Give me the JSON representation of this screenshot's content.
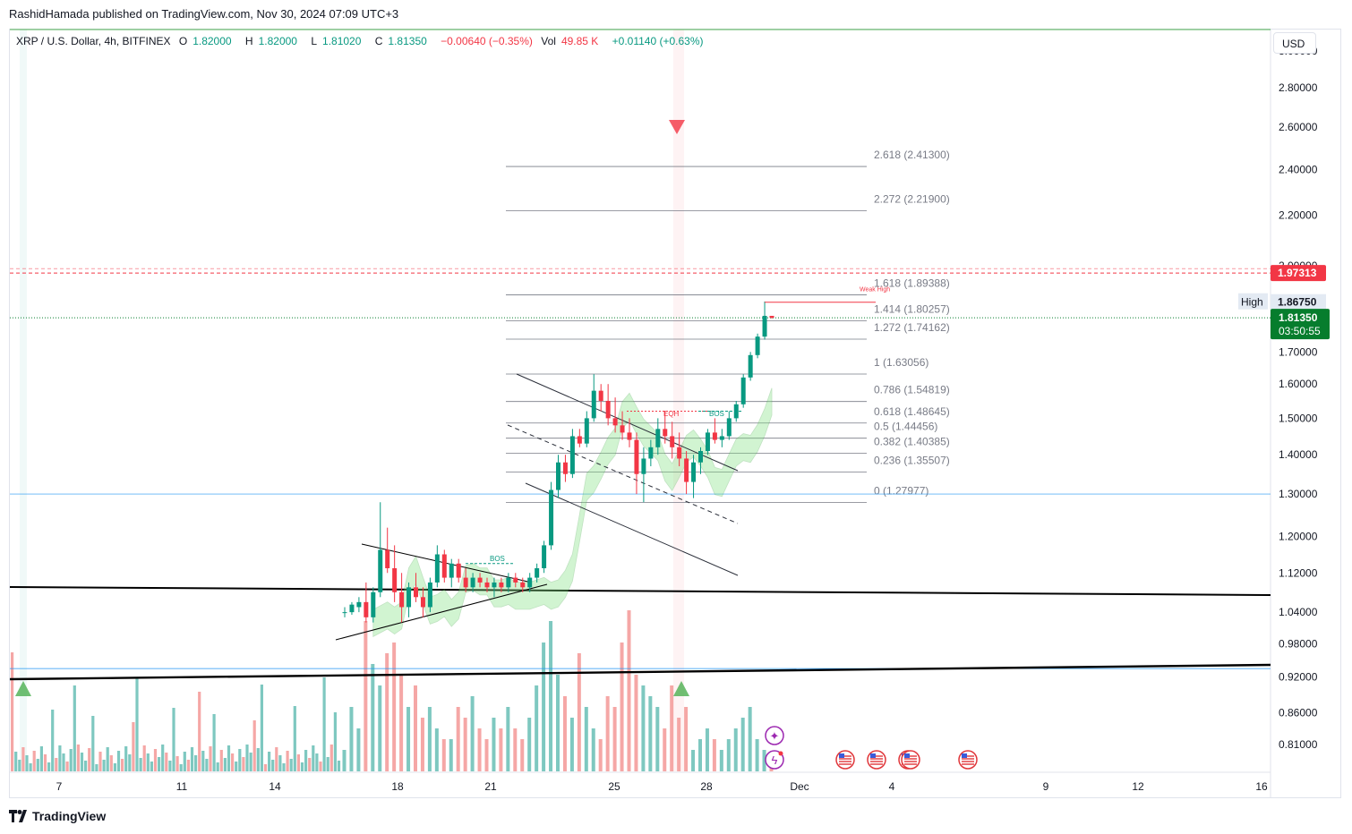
{
  "header": {
    "text": "RashidHamada published on TradingView.com, Nov 30, 2024 07:09 UTC+3"
  },
  "legend": {
    "symbol": "XRP / U.S. Dollar, 4h, BITFINEX",
    "open_label": "O",
    "open": "1.82000",
    "high_label": "H",
    "high": "1.82000",
    "low_label": "L",
    "low": "1.81020",
    "close_label": "C",
    "close": "1.81350",
    "change": "−0.00640 (−0.35%)",
    "vol_label": "Vol",
    "vol": "49.85 K",
    "vol_change": "+0.01140 (+0.63%)"
  },
  "currency_button": "USD",
  "footer": {
    "brand": "TradingView"
  },
  "colors": {
    "up": "#089981",
    "down": "#f23645",
    "vol_up": "#7ec8c0",
    "vol_down": "#f5a7a6",
    "fib": "#787b86",
    "trend": "#000000",
    "channel": "#2a2e39",
    "ribbon": "#7ee07e",
    "price_label": "#067d2d",
    "red_label": "#f23645"
  },
  "chart_data": {
    "type": "candlestick",
    "symbol": "XRP / U.S. Dollar",
    "interval": "4h",
    "y_range": [
      0.77,
      3.12
    ],
    "y_scale": "log",
    "y_ticks": [
      "3.00000",
      "2.80000",
      "2.60000",
      "2.40000",
      "2.20000",
      "2.00000",
      "1.70000",
      "1.60000",
      "1.50000",
      "1.40000",
      "1.30000",
      "1.20000",
      "1.12000",
      "1.04000",
      "0.98000",
      "0.92000",
      "0.86000",
      "0.81000"
    ],
    "x_ticks": [
      "7",
      "11",
      "14",
      "18",
      "21",
      "25",
      "28",
      "Dec",
      "4",
      "9",
      "12",
      "16"
    ],
    "fib_levels": [
      {
        "label": "2.618 (2.41300)",
        "value": 2.413
      },
      {
        "label": "2.272 (2.21900)",
        "value": 2.219
      },
      {
        "label": "1.618 (1.89388)",
        "value": 1.89388
      },
      {
        "label": "1.414 (1.80257)",
        "value": 1.80257
      },
      {
        "label": "1.272 (1.74162)",
        "value": 1.74162
      },
      {
        "label": "1 (1.63056)",
        "value": 1.63056
      },
      {
        "label": "0.786 (1.54819)",
        "value": 1.54819
      },
      {
        "label": "0.618 (1.48645)",
        "value": 1.48645
      },
      {
        "label": "0.5 (1.44456)",
        "value": 1.44456
      },
      {
        "label": "0.382 (1.40385)",
        "value": 1.40385
      },
      {
        "label": "0.236 (1.35507)",
        "value": 1.35507
      },
      {
        "label": "0 (1.27977)",
        "value": 1.27977
      }
    ],
    "annotations": {
      "weak_high": "Weak High",
      "eqh": "EQH",
      "bos": "BOS",
      "bos_lower": "BOS",
      "high_tag": "High"
    },
    "price_labels": {
      "red_line": "1.97313",
      "high": "1.86750",
      "last": "1.81350",
      "countdown": "03:50:55"
    },
    "candles": [
      [
        1.04,
        1.05,
        1.03,
        1.04
      ],
      [
        1.04,
        1.06,
        1.035,
        1.055
      ],
      [
        1.05,
        1.07,
        1.04,
        1.06
      ],
      [
        1.06,
        1.1,
        1.02,
        1.03
      ],
      [
        1.03,
        1.09,
        1.02,
        1.08
      ],
      [
        1.08,
        1.28,
        1.07,
        1.17
      ],
      [
        1.17,
        1.22,
        1.12,
        1.13
      ],
      [
        1.13,
        1.18,
        1.06,
        1.08
      ],
      [
        1.08,
        1.12,
        1.02,
        1.05
      ],
      [
        1.05,
        1.1,
        1.03,
        1.09
      ],
      [
        1.09,
        1.12,
        1.06,
        1.07
      ],
      [
        1.07,
        1.09,
        1.03,
        1.05
      ],
      [
        1.05,
        1.11,
        1.04,
        1.1
      ],
      [
        1.1,
        1.18,
        1.09,
        1.16
      ],
      [
        1.16,
        1.17,
        1.1,
        1.11
      ],
      [
        1.11,
        1.15,
        1.09,
        1.14
      ],
      [
        1.14,
        1.15,
        1.1,
        1.11
      ],
      [
        1.11,
        1.13,
        1.08,
        1.09
      ],
      [
        1.09,
        1.12,
        1.08,
        1.11
      ],
      [
        1.11,
        1.12,
        1.09,
        1.1
      ],
      [
        1.1,
        1.11,
        1.08,
        1.09
      ],
      [
        1.09,
        1.11,
        1.07,
        1.1
      ],
      [
        1.1,
        1.11,
        1.08,
        1.09
      ],
      [
        1.09,
        1.12,
        1.08,
        1.11
      ],
      [
        1.11,
        1.12,
        1.09,
        1.1
      ],
      [
        1.1,
        1.11,
        1.08,
        1.09
      ],
      [
        1.09,
        1.12,
        1.08,
        1.11
      ],
      [
        1.11,
        1.14,
        1.1,
        1.13
      ],
      [
        1.13,
        1.19,
        1.12,
        1.18
      ],
      [
        1.18,
        1.33,
        1.17,
        1.31
      ],
      [
        1.31,
        1.4,
        1.29,
        1.38
      ],
      [
        1.38,
        1.4,
        1.33,
        1.35
      ],
      [
        1.35,
        1.47,
        1.34,
        1.45
      ],
      [
        1.45,
        1.47,
        1.42,
        1.43
      ],
      [
        1.43,
        1.52,
        1.42,
        1.5
      ],
      [
        1.5,
        1.63,
        1.49,
        1.58
      ],
      [
        1.58,
        1.6,
        1.52,
        1.55
      ],
      [
        1.55,
        1.6,
        1.48,
        1.5
      ],
      [
        1.5,
        1.56,
        1.46,
        1.48
      ],
      [
        1.48,
        1.52,
        1.44,
        1.46
      ],
      [
        1.46,
        1.5,
        1.42,
        1.44
      ],
      [
        1.44,
        1.46,
        1.3,
        1.35
      ],
      [
        1.35,
        1.42,
        1.28,
        1.39
      ],
      [
        1.39,
        1.44,
        1.37,
        1.42
      ],
      [
        1.42,
        1.5,
        1.4,
        1.47
      ],
      [
        1.47,
        1.52,
        1.43,
        1.45
      ],
      [
        1.45,
        1.49,
        1.39,
        1.42
      ],
      [
        1.42,
        1.46,
        1.37,
        1.39
      ],
      [
        1.39,
        1.41,
        1.3,
        1.33
      ],
      [
        1.33,
        1.4,
        1.29,
        1.38
      ],
      [
        1.38,
        1.42,
        1.35,
        1.41
      ],
      [
        1.41,
        1.47,
        1.4,
        1.46
      ],
      [
        1.46,
        1.5,
        1.43,
        1.44
      ],
      [
        1.44,
        1.47,
        1.42,
        1.45
      ],
      [
        1.45,
        1.52,
        1.44,
        1.5
      ],
      [
        1.5,
        1.55,
        1.49,
        1.54
      ],
      [
        1.54,
        1.63,
        1.53,
        1.62
      ],
      [
        1.62,
        1.7,
        1.61,
        1.69
      ],
      [
        1.69,
        1.76,
        1.68,
        1.75
      ],
      [
        1.75,
        1.87,
        1.74,
        1.82
      ],
      [
        1.82,
        1.82,
        1.81,
        1.8135
      ]
    ],
    "volumes": [
      0.86,
      0.9,
      0.88,
      0.98,
      0.94,
      0.92,
      0.95,
      0.96,
      0.93,
      0.9,
      0.92,
      0.89,
      0.9,
      0.88,
      0.87,
      0.87,
      0.9,
      0.89,
      0.91,
      0.88,
      0.87,
      0.89,
      0.88,
      0.9,
      0.88,
      0.87,
      0.89,
      0.92,
      0.96,
      0.98,
      0.93,
      0.91,
      0.89,
      0.95,
      0.9,
      0.88,
      0.87,
      0.91,
      0.9,
      0.96,
      0.99,
      0.93,
      0.92,
      0.91,
      0.9,
      0.88,
      0.92,
      0.89,
      0.9,
      0.86,
      0.87,
      0.88,
      0.87,
      0.86,
      0.87,
      0.88,
      0.89,
      0.9,
      0.87,
      0.86,
      0.85
    ]
  }
}
